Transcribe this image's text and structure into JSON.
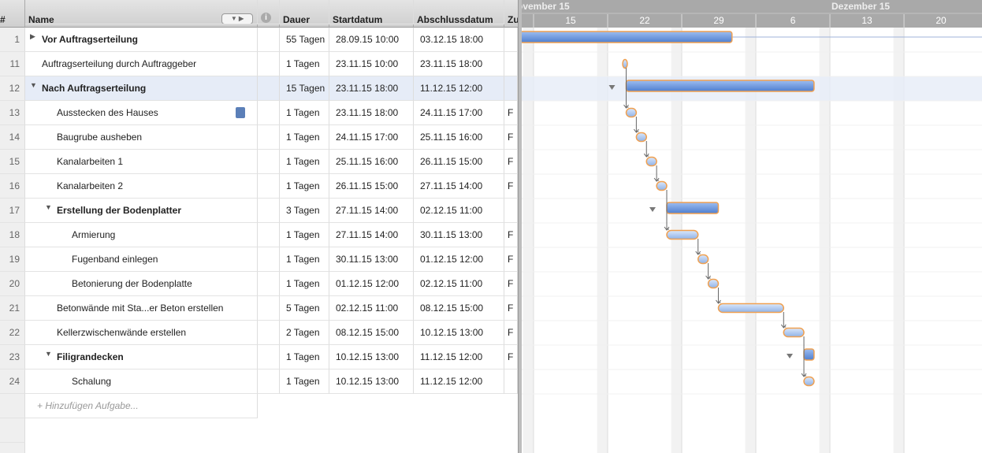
{
  "columns": {
    "number": "#",
    "name": "Name",
    "duration": "Dauer",
    "start": "Startdatum",
    "end": "Abschlussdatum",
    "zu": "Zu"
  },
  "tasks": [
    {
      "id": "1",
      "name": "Vor Auftragserteilung",
      "duration": "55 Tagen",
      "start": "28.09.15 10:00",
      "end": "03.12.15 18:00"
    },
    {
      "id": "11",
      "name": "Auftragserteilung durch Auftraggeber",
      "duration": "1 Tagen",
      "start": "23.11.15 10:00",
      "end": "23.11.15 18:00"
    },
    {
      "id": "12",
      "name": "Nach Auftragserteilung",
      "duration": "15 Tagen",
      "start": "23.11.15 18:00",
      "end": "11.12.15 12:00"
    },
    {
      "id": "13",
      "name": "Ausstecken des Hauses",
      "duration": "1 Tagen",
      "start": "23.11.15 18:00",
      "end": "24.11.15 17:00",
      "zu": "F"
    },
    {
      "id": "14",
      "name": "Baugrube ausheben",
      "duration": "1 Tagen",
      "start": "24.11.15 17:00",
      "end": "25.11.15 16:00",
      "zu": "F"
    },
    {
      "id": "15",
      "name": "Kanalarbeiten 1",
      "duration": "1 Tagen",
      "start": "25.11.15 16:00",
      "end": "26.11.15 15:00",
      "zu": "F"
    },
    {
      "id": "16",
      "name": "Kanalarbeiten 2",
      "duration": "1 Tagen",
      "start": "26.11.15 15:00",
      "end": "27.11.15 14:00",
      "zu": "F"
    },
    {
      "id": "17",
      "name": "Erstellung der Bodenplatter",
      "duration": "3 Tagen",
      "start": "27.11.15 14:00",
      "end": "02.12.15 11:00"
    },
    {
      "id": "18",
      "name": "Armierung",
      "duration": "1 Tagen",
      "start": "27.11.15 14:00",
      "end": "30.11.15 13:00",
      "zu": "F"
    },
    {
      "id": "19",
      "name": "Fugenband einlegen",
      "duration": "1 Tagen",
      "start": "30.11.15 13:00",
      "end": "01.12.15 12:00",
      "zu": "F"
    },
    {
      "id": "20",
      "name": "Betonierung der Bodenplatte",
      "duration": "1 Tagen",
      "start": "01.12.15 12:00",
      "end": "02.12.15 11:00",
      "zu": "F"
    },
    {
      "id": "21",
      "name": "Betonwände mit Sta...er Beton erstellen",
      "duration": "5 Tagen",
      "start": "02.12.15 11:00",
      "end": "08.12.15 15:00",
      "zu": "F"
    },
    {
      "id": "22",
      "name": "Kellerzwischenwände erstellen",
      "duration": "2 Tagen",
      "start": "08.12.15 15:00",
      "end": "10.12.15 13:00",
      "zu": "F"
    },
    {
      "id": "23",
      "name": "Filigrandecken",
      "duration": "1 Tagen",
      "start": "10.12.15 13:00",
      "end": "11.12.15 12:00",
      "zu": "F"
    },
    {
      "id": "24",
      "name": "Schalung",
      "duration": "1 Tagen",
      "start": "10.12.15 13:00",
      "end": "11.12.15 12:00"
    }
  ],
  "add_task": "+ Hinzufügen Aufgabe...",
  "timeline": {
    "months": [
      "ovember 15",
      "Dezember 15"
    ],
    "weeks": [
      "15",
      "22",
      "29",
      "6",
      "13",
      "20"
    ]
  }
}
